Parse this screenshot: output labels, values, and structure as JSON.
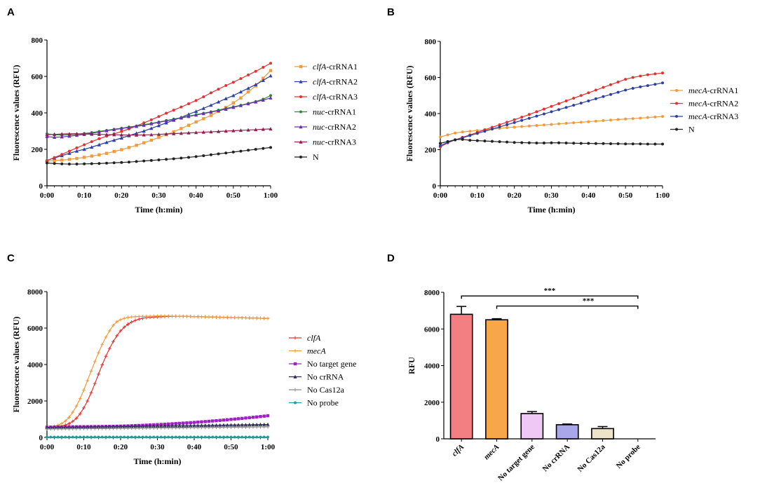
{
  "chart_data": [
    {
      "panel": "A",
      "type": "line",
      "xlabel": "Time (h:min)",
      "ylabel": "Fluorescence values (RFU)",
      "ylim": [
        0,
        800
      ],
      "yticks": [
        "0",
        "200",
        "400",
        "600",
        "800"
      ],
      "xticks": [
        "0:00",
        "0:10",
        "0:20",
        "0:30",
        "0:40",
        "0:50",
        "1:00"
      ],
      "xlim": [
        0,
        60
      ],
      "x_step_min": 2,
      "series": [
        {
          "label_it": "clfA",
          "label_rest": "-crRNA1",
          "color": "#f39a3a",
          "marker": "square",
          "values": [
            135,
            138,
            141,
            145,
            150,
            156,
            163,
            170,
            178,
            188,
            198,
            210,
            222,
            236,
            250,
            265,
            280,
            296,
            314,
            332,
            350,
            368,
            386,
            408,
            430,
            455,
            482,
            515,
            548,
            590,
            632
          ]
        },
        {
          "label_it": "clfA",
          "label_rest": "-crRNA2",
          "color": "#2b3fa5",
          "marker": "triangle",
          "values": [
            140,
            152,
            165,
            178,
            190,
            200,
            212,
            225,
            238,
            250,
            262,
            275,
            288,
            300,
            315,
            330,
            345,
            360,
            375,
            392,
            408,
            425,
            442,
            460,
            478,
            495,
            515,
            535,
            555,
            578,
            603
          ]
        },
        {
          "label_it": "clfA",
          "label_rest": "-crRNA3",
          "color": "#e53030",
          "marker": "circle",
          "values": [
            138,
            155,
            172,
            190,
            208,
            225,
            242,
            258,
            272,
            285,
            298,
            312,
            328,
            345,
            362,
            380,
            398,
            415,
            432,
            450,
            468,
            488,
            510,
            530,
            550,
            568,
            588,
            608,
            628,
            650,
            672
          ]
        },
        {
          "label_it": "nuc",
          "label_rest": "-crRNA1",
          "color": "#2e8a3a",
          "marker": "circle",
          "values": [
            285,
            280,
            278,
            280,
            283,
            287,
            292,
            298,
            304,
            310,
            316,
            322,
            328,
            335,
            342,
            350,
            358,
            366,
            374,
            382,
            390,
            398,
            406,
            415,
            424,
            433,
            442,
            452,
            462,
            475,
            495
          ]
        },
        {
          "label_it": "nuc",
          "label_rest": "-crRNA2",
          "color": "#6a2fb0",
          "marker": "triangle",
          "values": [
            270,
            266,
            268,
            272,
            277,
            282,
            288,
            295,
            302,
            308,
            314,
            320,
            326,
            332,
            340,
            348,
            356,
            364,
            372,
            380,
            388,
            396,
            404,
            412,
            420,
            430,
            440,
            450,
            460,
            470,
            482
          ]
        },
        {
          "label_it": "nuc",
          "label_rest": "-crRNA3",
          "color": "#8e2050",
          "marker": "triangle",
          "values": [
            280,
            282,
            284,
            285,
            285,
            284,
            283,
            282,
            281,
            280,
            279,
            278,
            278,
            279,
            280,
            282,
            284,
            286,
            288,
            290,
            292,
            294,
            296,
            298,
            300,
            302,
            304,
            306,
            308,
            310,
            312
          ]
        },
        {
          "label_it": "",
          "label_rest": "N",
          "color": "#222222",
          "marker": "circle",
          "values": [
            125,
            122,
            120,
            119,
            119,
            120,
            121,
            122,
            124,
            126,
            128,
            130,
            133,
            136,
            139,
            142,
            145,
            148,
            152,
            156,
            160,
            165,
            170,
            175,
            180,
            185,
            190,
            195,
            200,
            205,
            210
          ]
        }
      ]
    },
    {
      "panel": "B",
      "type": "line",
      "xlabel": "Time (h:min)",
      "ylabel": "Fluorescence values (RFU)",
      "ylim": [
        0,
        800
      ],
      "yticks": [
        "0",
        "200",
        "400",
        "600",
        "800"
      ],
      "xticks": [
        "0:00",
        "0:10",
        "0:20",
        "0:30",
        "0:40",
        "0:50",
        "1:00"
      ],
      "xlim": [
        0,
        60
      ],
      "x_step_min": 2,
      "series": [
        {
          "label_it": "mecA",
          "label_rest": "-crRNA1",
          "color": "#f39a3a",
          "marker": "circle",
          "values": [
            270,
            282,
            292,
            298,
            302,
            306,
            310,
            314,
            318,
            322,
            325,
            328,
            331,
            334,
            337,
            340,
            343,
            346,
            349,
            352,
            355,
            358,
            361,
            364,
            367,
            370,
            372,
            375,
            378,
            381,
            384
          ]
        },
        {
          "label_it": "mecA",
          "label_rest": "-crRNA2",
          "color": "#e53030",
          "marker": "circle",
          "values": [
            215,
            238,
            254,
            268,
            282,
            296,
            310,
            324,
            338,
            352,
            366,
            380,
            395,
            410,
            425,
            440,
            455,
            470,
            485,
            500,
            515,
            530,
            545,
            560,
            575,
            590,
            600,
            608,
            615,
            620,
            625
          ]
        },
        {
          "label_it": "mecA",
          "label_rest": "-crRNA3",
          "color": "#2b3fa5",
          "marker": "circle",
          "values": [
            222,
            240,
            254,
            266,
            278,
            290,
            302,
            314,
            326,
            338,
            350,
            362,
            374,
            386,
            398,
            410,
            422,
            434,
            446,
            458,
            470,
            482,
            494,
            506,
            518,
            530,
            540,
            548,
            555,
            562,
            570
          ]
        },
        {
          "label_it": "",
          "label_rest": "N",
          "color": "#222222",
          "marker": "circle",
          "values": [
            235,
            245,
            255,
            257,
            252,
            250,
            248,
            246,
            244,
            242,
            240,
            239,
            238,
            237,
            237,
            238,
            238,
            237,
            236,
            235,
            235,
            234,
            234,
            233,
            233,
            232,
            232,
            232,
            231,
            231,
            231
          ]
        }
      ]
    },
    {
      "panel": "C",
      "type": "line",
      "xlabel": "Time (h:min)",
      "ylabel": "Fluorescence values (RFU)",
      "ylim": [
        0,
        8000
      ],
      "yticks": [
        "0",
        "2000",
        "4000",
        "6000",
        "8000"
      ],
      "xticks": [
        "0:00",
        "0:10",
        "0:20",
        "0:30",
        "0:40",
        "0:50",
        "1:00"
      ],
      "xlim": [
        0,
        60
      ],
      "x_step_min": 1,
      "series": [
        {
          "label_it": "clfA",
          "label_rest": "",
          "color": "#e53030",
          "marker": "plus",
          "values": [
            520,
            540,
            560,
            590,
            630,
            680,
            760,
            880,
            1050,
            1300,
            1620,
            2000,
            2450,
            2950,
            3470,
            3980,
            4450,
            4880,
            5260,
            5580,
            5850,
            6050,
            6210,
            6330,
            6420,
            6490,
            6540,
            6570,
            6590,
            6600,
            6610,
            6620,
            6630,
            6640,
            6645,
            6650,
            6650,
            6645,
            6640,
            6635,
            6630,
            6625,
            6620,
            6615,
            6610,
            6605,
            6600,
            6595,
            6590,
            6585,
            6580,
            6575,
            6570,
            6565,
            6560,
            6555,
            6550,
            6545,
            6540,
            6535,
            6530
          ]
        },
        {
          "label_it": "mecA",
          "label_rest": "",
          "color": "#f39a3a",
          "marker": "plus",
          "values": [
            540,
            570,
            610,
            670,
            760,
            900,
            1100,
            1380,
            1720,
            2130,
            2600,
            3120,
            3640,
            4160,
            4650,
            5100,
            5500,
            5850,
            6150,
            6350,
            6460,
            6530,
            6580,
            6610,
            6625,
            6635,
            6640,
            6645,
            6650,
            6655,
            6660,
            6665,
            6665,
            6660,
            6655,
            6650,
            6645,
            6640,
            6635,
            6630,
            6625,
            6620,
            6615,
            6610,
            6605,
            6600,
            6595,
            6590,
            6585,
            6580,
            6575,
            6570,
            6565,
            6560,
            6555,
            6550,
            6545,
            6540,
            6535,
            6530,
            6525
          ]
        },
        {
          "label_it": "",
          "label_rest": "No target gene",
          "color": "#a020c8",
          "marker": "square",
          "values": [
            560,
            565,
            570,
            575,
            578,
            580,
            582,
            584,
            586,
            588,
            590,
            592,
            594,
            596,
            598,
            600,
            603,
            606,
            610,
            615,
            620,
            626,
            632,
            640,
            648,
            656,
            665,
            674,
            684,
            694,
            704,
            714,
            725,
            736,
            748,
            760,
            772,
            785,
            798,
            812,
            826,
            840,
            855,
            870,
            886,
            902,
            918,
            935,
            952,
            970,
            988,
            1006,
            1025,
            1044,
            1064,
            1084,
            1104,
            1125,
            1146,
            1168,
            1190
          ]
        },
        {
          "label_it": "",
          "label_rest": "No crRNA",
          "color": "#2a2a55",
          "marker": "triangle",
          "values": [
            530,
            533,
            536,
            539,
            542,
            545,
            548,
            551,
            554,
            557,
            560,
            563,
            566,
            569,
            572,
            575,
            578,
            581,
            584,
            587,
            590,
            593,
            596,
            599,
            602,
            605,
            608,
            611,
            614,
            617,
            620,
            623,
            626,
            629,
            632,
            635,
            638,
            641,
            644,
            647,
            650,
            653,
            656,
            659,
            662,
            665,
            668,
            671,
            674,
            677,
            680,
            683,
            686,
            689,
            692,
            695,
            698,
            701,
            704,
            707,
            710
          ]
        },
        {
          "label_it": "",
          "label_rest": "No Cas12a",
          "color": "#8a8a8a",
          "marker": "plus",
          "values": [
            460,
            462,
            464,
            466,
            468,
            470,
            472,
            474,
            476,
            478,
            480,
            482,
            484,
            486,
            488,
            490,
            492,
            494,
            496,
            498,
            500,
            502,
            504,
            506,
            508,
            510,
            512,
            514,
            516,
            518,
            520,
            522,
            524,
            526,
            528,
            530,
            532,
            534,
            536,
            538,
            540,
            542,
            544,
            546,
            548,
            550,
            552,
            554,
            556,
            558,
            560,
            562,
            564,
            566,
            568,
            570,
            572,
            574,
            576,
            578,
            580
          ]
        },
        {
          "label_it": "",
          "label_rest": "No probe",
          "color": "#1a9e9e",
          "marker": "circle",
          "values": [
            20,
            20,
            20,
            20,
            20,
            20,
            20,
            20,
            20,
            20,
            20,
            20,
            20,
            20,
            20,
            20,
            20,
            20,
            20,
            20,
            20,
            20,
            20,
            20,
            20,
            20,
            20,
            20,
            20,
            20,
            20,
            20,
            20,
            20,
            20,
            20,
            20,
            20,
            20,
            20,
            20,
            20,
            20,
            20,
            20,
            20,
            20,
            20,
            20,
            20,
            20,
            20,
            20,
            20,
            20,
            20,
            20,
            20,
            20,
            20,
            20
          ]
        }
      ]
    },
    {
      "panel": "D",
      "type": "bar",
      "ylabel": "RFU",
      "ylim": [
        0,
        8000
      ],
      "yticks": [
        "0",
        "2000",
        "4000",
        "6000",
        "8000"
      ],
      "categories": [
        {
          "label": "clfA",
          "italic": true
        },
        {
          "label": "mecA",
          "italic": true
        },
        {
          "label": "No target gene",
          "italic": false
        },
        {
          "label": "No crRNA",
          "italic": false
        },
        {
          "label": "No Cas12a",
          "italic": false
        },
        {
          "label": "No probe",
          "italic": false
        }
      ],
      "values": [
        6800,
        6500,
        1380,
        770,
        560,
        0
      ],
      "errors": [
        430,
        60,
        110,
        40,
        110,
        0
      ],
      "colors": [
        "#f47f82",
        "#f7a64a",
        "#efc8f5",
        "#a9a6ea",
        "#ece3c8",
        "#ffffff"
      ],
      "significance": [
        {
          "from": 0,
          "to": 5,
          "text": "***",
          "level": 7800
        },
        {
          "from": 1,
          "to": 5,
          "text": "***",
          "level": 7250
        }
      ]
    }
  ],
  "panel_labels": [
    "A",
    "B",
    "C",
    "D"
  ]
}
